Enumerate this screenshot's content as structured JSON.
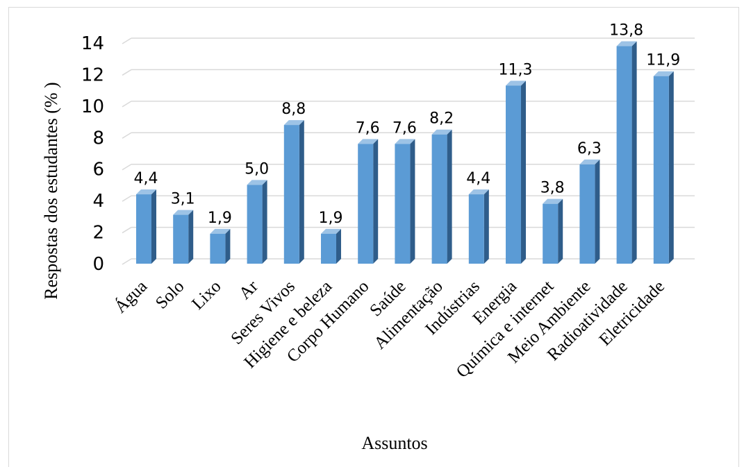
{
  "chart_data": {
    "type": "bar",
    "style": "3d-column",
    "categories": [
      "Água",
      "Solo",
      "Lixo",
      "Ar",
      "Seres Vivos",
      "Higiene e beleza",
      "Corpo Humano",
      "Saúde",
      "Alimentação",
      "Indústrias",
      "Energia",
      "Química e internet",
      "Meio Ambiente",
      "Radioatividade",
      "Eletricidade"
    ],
    "values": [
      4.4,
      3.1,
      1.9,
      5.0,
      8.8,
      1.9,
      7.6,
      7.6,
      8.2,
      4.4,
      11.3,
      3.8,
      6.3,
      13.8,
      11.9
    ],
    "data_labels": [
      "4,4",
      "3,1",
      "1,9",
      "5,0",
      "8,8",
      "1,9",
      "7,6",
      "7,6",
      "8,2",
      "4,4",
      "11,3",
      "3,8",
      "6,3",
      "13,8",
      "11,9"
    ],
    "yticks": [
      "0",
      "2",
      "4",
      "6",
      "8",
      "10",
      "12",
      "14"
    ],
    "ylim": [
      0,
      14
    ],
    "xlabel": "Assuntos",
    "ylabel": "Respostas dos estudantes (% )",
    "grid": true,
    "legend": "none",
    "colors": {
      "bar_front": "#5b9bd5",
      "bar_side": "#2f5d8a",
      "bar_top": "#9dc3e6",
      "grid": "#d9d9d9"
    }
  }
}
